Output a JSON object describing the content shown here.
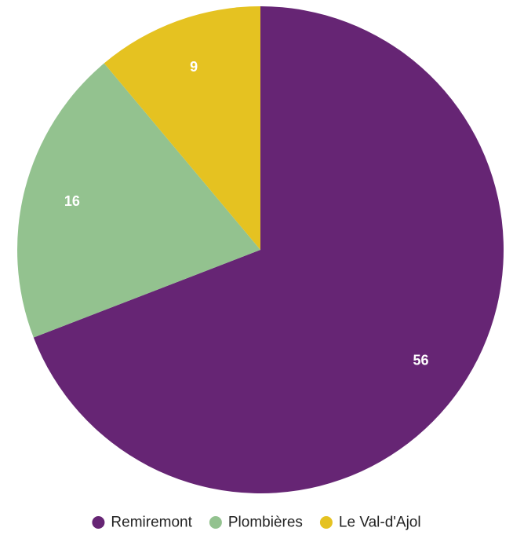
{
  "chart_data": {
    "type": "pie",
    "title": "",
    "slices": [
      {
        "label": "Remiremont",
        "value": 56,
        "color": "#662574"
      },
      {
        "label": "Plombières",
        "value": 16,
        "color": "#93c28f"
      },
      {
        "label": "Le Val-d'Ajol",
        "value": 9,
        "color": "#e5c221"
      }
    ],
    "start_angle": "12 o'clock",
    "direction": "clockwise",
    "data_labels": "inside",
    "legend": "bottom-center"
  }
}
